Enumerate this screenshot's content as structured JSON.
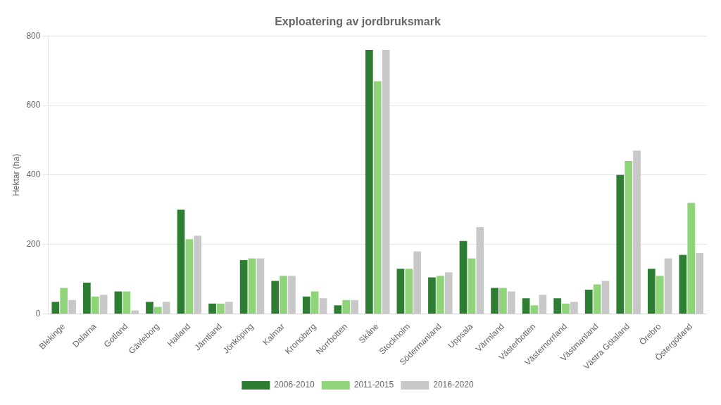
{
  "chart_data": {
    "type": "bar",
    "title": "Exploatering av jordbruksmark",
    "ylabel": "Hektar (ha)",
    "categories": [
      "Blekinge",
      "Dalarna",
      "Gotland",
      "Gävleborg",
      "Halland",
      "Jämtland",
      "Jönköping",
      "Kalmar",
      "Kronoberg",
      "Norrbotten",
      "Skåne",
      "Stockholm",
      "Södermanland",
      "Uppsala",
      "Värmland",
      "Västerbotten",
      "Västernorrland",
      "Västmanland",
      "Västra Götaland",
      "Örebro",
      "Östergötland"
    ],
    "series": [
      {
        "name": "2006-2010",
        "color": "#2d7d33",
        "values": [
          35,
          90,
          65,
          35,
          300,
          30,
          155,
          95,
          50,
          25,
          760,
          130,
          105,
          210,
          75,
          45,
          45,
          70,
          400,
          130,
          170
        ]
      },
      {
        "name": "2011-2015",
        "color": "#90d47a",
        "values": [
          75,
          50,
          65,
          20,
          215,
          30,
          160,
          110,
          65,
          40,
          670,
          130,
          110,
          160,
          75,
          25,
          30,
          85,
          440,
          110,
          320
        ]
      },
      {
        "name": "2016-2020",
        "color": "#c8c8c8",
        "values": [
          40,
          55,
          10,
          35,
          225,
          35,
          160,
          110,
          45,
          40,
          760,
          180,
          120,
          250,
          65,
          55,
          35,
          95,
          470,
          160,
          175
        ]
      }
    ],
    "ylim": [
      0,
      800
    ],
    "yticks": [
      0,
      200,
      400,
      600,
      800
    ],
    "grid": true,
    "legend": "bottom"
  }
}
